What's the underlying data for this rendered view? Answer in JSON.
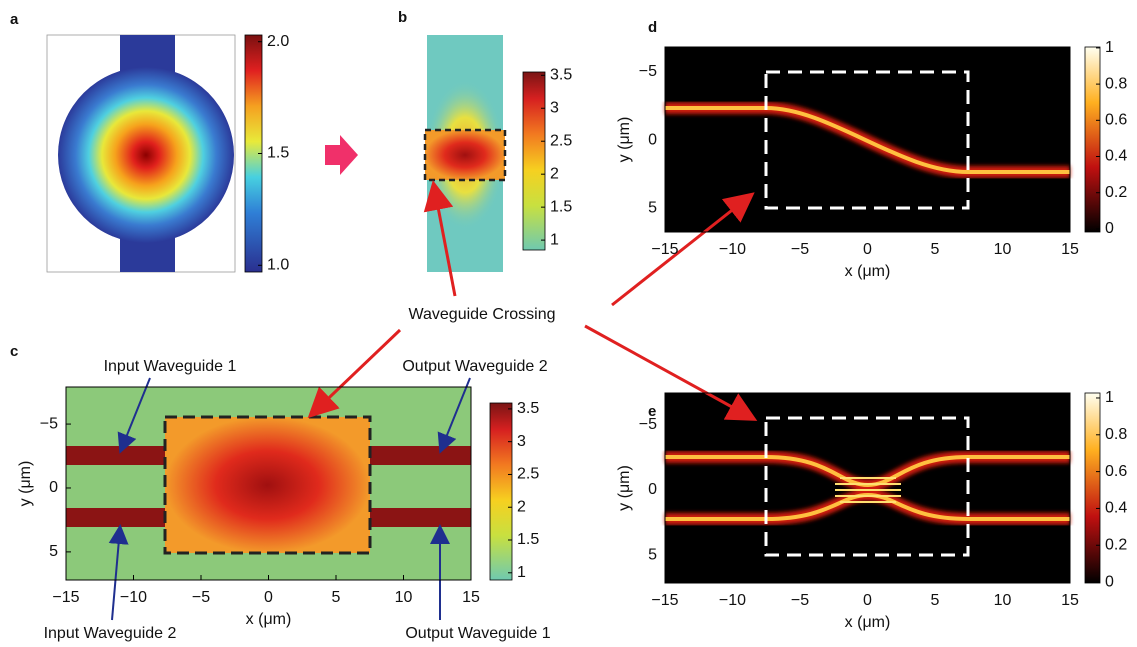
{
  "panels": {
    "a": {
      "letter": "a",
      "colorbar": {
        "lim": [
          0.97,
          2.03
        ],
        "ticks": [
          {
            "value": 2,
            "label": "2.0"
          },
          {
            "value": 1.5,
            "label": "1.5"
          },
          {
            "value": 1,
            "label": "1.0"
          }
        ]
      }
    },
    "b": {
      "letter": "b",
      "colorbar": {
        "lim": [
          0.85,
          3.55
        ],
        "ticks": [
          3.5,
          3,
          2.5,
          2,
          1.5,
          1
        ]
      }
    },
    "c": {
      "letter": "c",
      "x_label": "x (μm)",
      "y_label": "y (μm)",
      "xlim": [
        -15,
        15
      ],
      "ylim": [
        -7.9,
        7.2
      ],
      "xticks": [
        {
          "value": -15,
          "label": "−15"
        },
        {
          "value": -10,
          "label": "−10"
        },
        {
          "value": -5,
          "label": "−5"
        },
        0,
        5,
        10,
        15
      ],
      "yticks": [
        {
          "value": -5,
          "label": "−5"
        },
        0,
        5
      ],
      "colorbar": {
        "lim": [
          0.89,
          3.59
        ],
        "ticks": [
          3.5,
          3,
          2.5,
          2,
          1.5,
          1
        ]
      }
    },
    "d": {
      "letter": "d",
      "x_label": "x (μm)",
      "y_label": "y (μm)",
      "xlim": [
        -15,
        15
      ],
      "ylim": [
        -6.84,
        6.76
      ],
      "xticks": [
        {
          "value": -15,
          "label": "−15"
        },
        {
          "value": -10,
          "label": "−10"
        },
        {
          "value": -5,
          "label": "−5"
        },
        0,
        5,
        10,
        15
      ],
      "yticks": [
        {
          "value": -5,
          "label": "−5"
        },
        0,
        5
      ],
      "colorbar": {
        "lim": [
          -0.017,
          1.005
        ],
        "ticks": [
          1,
          0.8,
          0.6,
          0.4,
          0.2,
          0
        ]
      }
    },
    "e": {
      "letter": "e",
      "x_label": "x (μm)",
      "y_label": "y (μm)",
      "xlim": [
        -15,
        15
      ],
      "ylim": [
        -7.46,
        7.15
      ],
      "xticks": [
        {
          "value": -15,
          "label": "−15"
        },
        {
          "value": -10,
          "label": "−10"
        },
        {
          "value": -5,
          "label": "−5"
        },
        0,
        5,
        10,
        15
      ],
      "yticks": [
        {
          "value": -5,
          "label": "−5"
        },
        0,
        5
      ],
      "colorbar": {
        "lim": [
          -0.005,
          1.027
        ],
        "ticks": [
          1,
          0.8,
          0.6,
          0.4,
          0.2,
          0
        ]
      }
    }
  },
  "annotations": {
    "waveguide_crossing": "Waveguide Crossing",
    "input_waveguide_1": "Input Waveguide 1",
    "output_waveguide_2": "Output Waveguide 2",
    "input_waveguide_2": "Input Waveguide 2",
    "output_waveguide_1": "Output Waveguide 1"
  }
}
